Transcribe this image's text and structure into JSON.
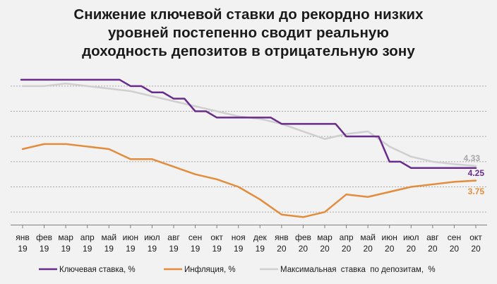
{
  "chart_data": {
    "type": "line",
    "title_lines": [
      "Снижение ключевой ставки до рекордно низких",
      "уровней постепенно сводит реальную",
      "доходность депозитов в отрицательную зону"
    ],
    "categories": [
      [
        "янв",
        "19"
      ],
      [
        "фев",
        "19"
      ],
      [
        "мар",
        "19"
      ],
      [
        "апр",
        "19"
      ],
      [
        "май",
        "19"
      ],
      [
        "июн",
        "19"
      ],
      [
        "июл",
        "19"
      ],
      [
        "авг",
        "19"
      ],
      [
        "сен",
        "19"
      ],
      [
        "окт",
        "19"
      ],
      [
        "ноя",
        "19"
      ],
      [
        "дек",
        "19"
      ],
      [
        "янв",
        "20"
      ],
      [
        "фев",
        "20"
      ],
      [
        "мар",
        "20"
      ],
      [
        "апр",
        "20"
      ],
      [
        "май",
        "20"
      ],
      [
        "июн",
        "20"
      ],
      [
        "июл",
        "20"
      ],
      [
        "авг",
        "20"
      ],
      [
        "сен",
        "20"
      ],
      [
        "окт",
        "20"
      ]
    ],
    "ylim": [
      2.0,
      8.0
    ],
    "grid": true,
    "legend_position": "bottom",
    "series": [
      {
        "name": "Ключевая ставка, %",
        "color": "#6a2c8c",
        "shape": "step",
        "values": [
          7.75,
          7.75,
          7.75,
          7.75,
          7.75,
          7.5,
          7.25,
          7.0,
          6.5,
          6.25,
          6.25,
          6.25,
          6.0,
          6.0,
          6.0,
          5.5,
          5.5,
          4.5,
          4.25,
          4.25,
          4.25,
          4.25
        ],
        "end_label": "4.25"
      },
      {
        "name": "Инфляция, %",
        "color": "#e38c3c",
        "shape": "line",
        "values": [
          5.0,
          5.2,
          5.2,
          5.1,
          5.0,
          4.6,
          4.6,
          4.3,
          4.0,
          3.8,
          3.5,
          3.0,
          2.4,
          2.3,
          2.5,
          3.2,
          3.1,
          3.3,
          3.5,
          3.6,
          3.7,
          3.75
        ],
        "end_label": "3.75"
      },
      {
        "name": "Максимальная  ставка  по депозитам,  %",
        "color": "#cfcfcf",
        "shape": "line",
        "values": [
          7.5,
          7.5,
          7.6,
          7.5,
          7.4,
          7.3,
          7.1,
          6.9,
          6.7,
          6.5,
          6.3,
          6.2,
          6.0,
          5.7,
          5.4,
          5.6,
          5.7,
          5.1,
          4.7,
          4.5,
          4.4,
          4.33
        ],
        "end_label": "4.33"
      }
    ]
  }
}
